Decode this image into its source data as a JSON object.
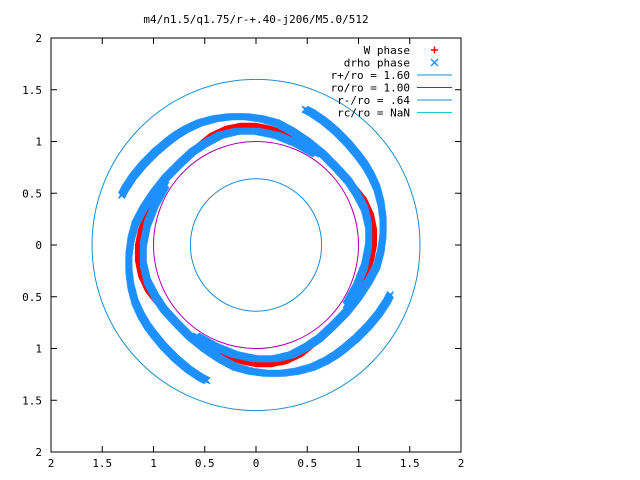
{
  "chart_data": {
    "type": "scatter",
    "title": "m4/n1.5/q1.75/r-+.40-j206/M5.0/512",
    "xlim": [
      -2,
      2
    ],
    "ylim": [
      -2,
      2
    ],
    "x_tick_labels": [
      "2",
      "1.5",
      "1",
      "0.5",
      "0",
      "0.5",
      "1",
      "1.5",
      "2"
    ],
    "y_tick_labels": [
      "2",
      "1.5",
      "1",
      "0.5",
      "0",
      "0.5",
      "1",
      "1.5",
      "2"
    ],
    "x_ticks": [
      -2,
      -1.5,
      -1,
      -0.5,
      0,
      0.5,
      1,
      1.5,
      2
    ],
    "y_ticks": [
      -2,
      -1.5,
      -1,
      -0.5,
      0,
      0.5,
      1,
      1.5,
      2
    ],
    "grid": false,
    "legend_position": "top-right",
    "series": [
      {
        "name": "W phase",
        "marker": "+",
        "color": "#ff0000",
        "arms": 4,
        "path": [
          [
            0.55,
            0.95
          ],
          [
            0.35,
            1.05
          ],
          [
            0.15,
            1.12
          ],
          [
            0.0,
            1.15
          ],
          [
            -0.15,
            1.15
          ],
          [
            -0.3,
            1.12
          ],
          [
            -0.45,
            1.05
          ],
          [
            -0.55,
            0.97
          ],
          [
            -0.62,
            0.9
          ],
          [
            -0.7,
            0.82
          ],
          [
            -0.78,
            0.75
          ],
          [
            -0.85,
            0.68
          ],
          [
            -0.92,
            0.58
          ],
          [
            -0.98,
            0.48
          ],
          [
            -1.02,
            0.38
          ],
          [
            -1.06,
            0.28
          ],
          [
            -1.1,
            0.15
          ],
          [
            -1.12,
            0.02
          ],
          [
            -1.12,
            -0.1
          ],
          [
            -1.1,
            -0.22
          ],
          [
            -1.06,
            -0.32
          ],
          [
            -1.02,
            -0.42
          ],
          [
            -0.98,
            -0.5
          ]
        ]
      },
      {
        "name": "drho phase",
        "marker": "x",
        "color": "#1e90ff",
        "arms": 4,
        "path": [
          [
            0.58,
            0.88
          ],
          [
            0.4,
            0.98
          ],
          [
            0.2,
            1.06
          ],
          [
            0.0,
            1.1
          ],
          [
            -0.18,
            1.1
          ],
          [
            -0.35,
            1.06
          ],
          [
            -0.5,
            0.98
          ],
          [
            -0.62,
            0.9
          ],
          [
            -0.75,
            0.78
          ],
          [
            -0.88,
            0.65
          ],
          [
            -1.0,
            0.5
          ],
          [
            -1.1,
            0.35
          ],
          [
            -1.18,
            0.2
          ],
          [
            -1.22,
            0.05
          ],
          [
            -1.24,
            -0.1
          ],
          [
            -1.24,
            -0.25
          ],
          [
            -1.22,
            -0.4
          ],
          [
            -1.18,
            -0.55
          ],
          [
            -1.12,
            -0.68
          ],
          [
            -1.06,
            -0.78
          ],
          [
            -1.0,
            -0.86
          ],
          [
            -0.95,
            -0.92
          ],
          [
            -0.9,
            -0.98
          ],
          [
            -0.84,
            -1.04
          ],
          [
            -0.78,
            -1.1
          ],
          [
            -0.72,
            -1.15
          ],
          [
            -0.66,
            -1.2
          ],
          [
            -0.6,
            -1.24
          ],
          [
            -0.54,
            -1.28
          ],
          [
            -0.48,
            -1.31
          ]
        ]
      },
      {
        "name": "r+/ro = 1.60",
        "type": "circle",
        "radius": 1.6,
        "color": "#1a8fcf"
      },
      {
        "name": "ro/ro = 1.00",
        "type": "circle",
        "radius": 1.0,
        "color": "#b000b0"
      },
      {
        "name": "r-/ro = .64",
        "type": "circle",
        "radius": 0.64,
        "color": "#1a8fcf"
      },
      {
        "name": "rc/ro = NaN",
        "type": "circle",
        "radius": null,
        "color": "#20c8c8"
      }
    ]
  }
}
